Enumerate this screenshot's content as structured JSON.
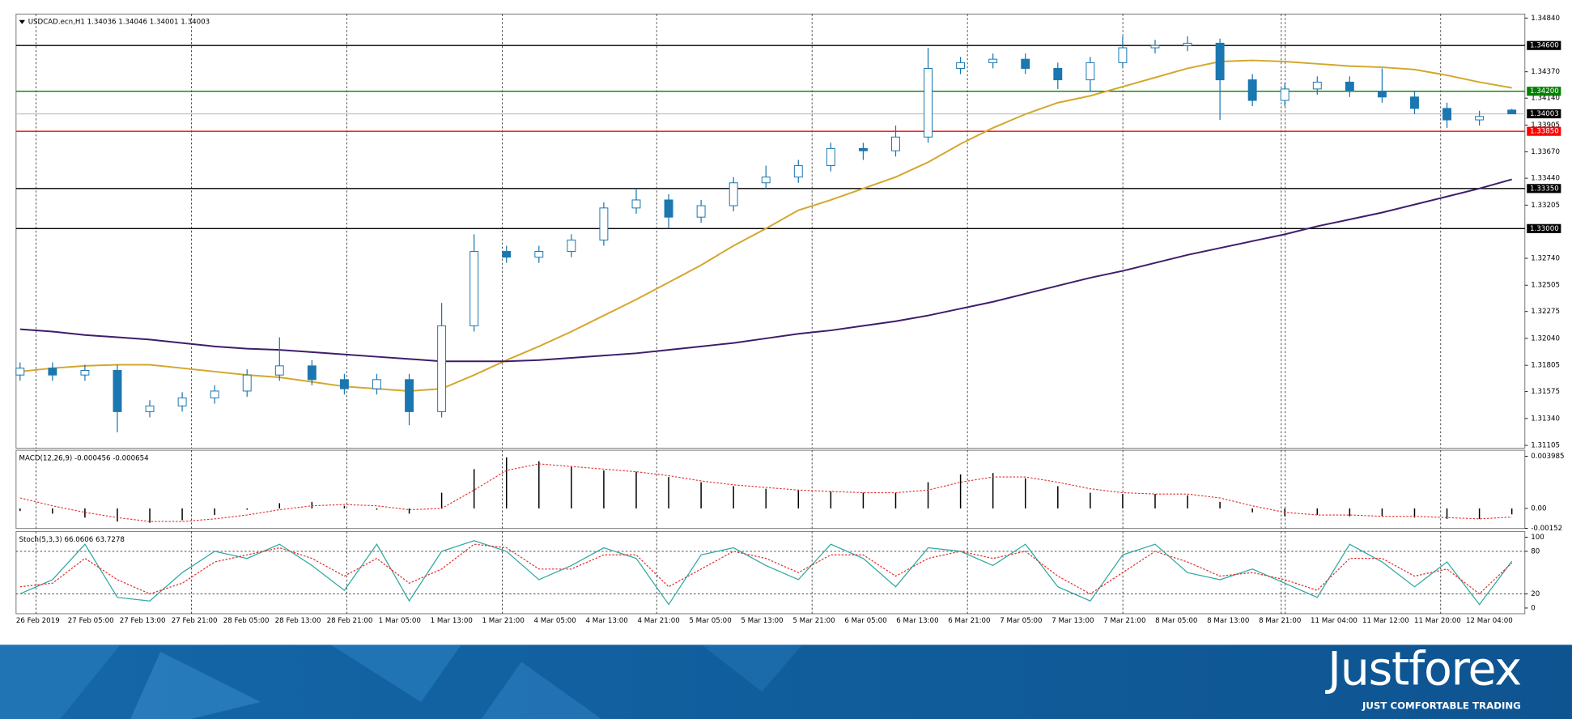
{
  "chart_data": [
    {
      "type": "candlestick",
      "title": "USDCAD.ecn,H1  1.34036 1.34046 1.34001 1.34003",
      "ylim": [
        1.3108,
        1.34875
      ],
      "yticks": [
        {
          "value": 1.3484,
          "label": "1.34840"
        },
        {
          "value": 1.3437,
          "label": "1.34370"
        },
        {
          "value": 1.3414,
          "label": "1.34140"
        },
        {
          "value": 1.33905,
          "label": "1.33905"
        },
        {
          "value": 1.3367,
          "label": "1.33670"
        },
        {
          "value": 1.3344,
          "label": "1.33440"
        },
        {
          "value": 1.33205,
          "label": "1.33205"
        },
        {
          "value": 1.3274,
          "label": "1.32740"
        },
        {
          "value": 1.32505,
          "label": "1.32505"
        },
        {
          "value": 1.32275,
          "label": "1.32275"
        },
        {
          "value": 1.3204,
          "label": "1.32040"
        },
        {
          "value": 1.31805,
          "label": "1.31805"
        },
        {
          "value": 1.31575,
          "label": "1.31575"
        },
        {
          "value": 1.3134,
          "label": "1.31340"
        },
        {
          "value": 1.31105,
          "label": "1.31105"
        }
      ],
      "levels": [
        {
          "value": 1.346,
          "label": "1.34600",
          "color": "#000000",
          "tag": "#000000"
        },
        {
          "value": 1.342,
          "label": "1.34200",
          "color": "#008000",
          "tag": "#008000"
        },
        {
          "value": 1.34003,
          "label": "1.34003",
          "color": "#c8c8c8",
          "tag": "#000000"
        },
        {
          "value": 1.3385,
          "label": "1.33850",
          "color": "#ff0000",
          "tag": "#ff0000"
        },
        {
          "value": 1.3335,
          "label": "1.33350",
          "color": "#000000",
          "tag": "#000000"
        },
        {
          "value": 1.33,
          "label": "1.33000",
          "color": "#000000",
          "tag": "#000000"
        }
      ],
      "up_color": "#ffffff",
      "down_color": "#1a77b0",
      "wick_color": "#1a77b0",
      "open": [
        1.3172,
        1.3178,
        1.3172,
        1.3176,
        1.314,
        1.3145,
        1.3152,
        1.3158,
        1.3172,
        1.318,
        1.3168,
        1.316,
        1.3168,
        1.314,
        1.3215,
        1.328,
        1.3275,
        1.328,
        1.329,
        1.3318,
        1.3325,
        1.331,
        1.332,
        1.334,
        1.3345,
        1.3355,
        1.337,
        1.3368,
        1.338,
        1.344,
        1.3445,
        1.3448,
        1.344,
        1.343,
        1.3445,
        1.3458,
        1.346,
        1.3462,
        1.343,
        1.3412,
        1.3422,
        1.3428,
        1.342,
        1.3415,
        1.3405,
        1.3395,
        1.34036
      ],
      "high": [
        1.3183,
        1.3183,
        1.3181,
        1.3181,
        1.315,
        1.3157,
        1.3163,
        1.3177,
        1.3205,
        1.3185,
        1.3173,
        1.3173,
        1.3173,
        1.3235,
        1.3295,
        1.3285,
        1.3285,
        1.3295,
        1.3323,
        1.3335,
        1.333,
        1.3325,
        1.3345,
        1.3355,
        1.336,
        1.3375,
        1.3375,
        1.339,
        1.3458,
        1.345,
        1.3453,
        1.3453,
        1.3445,
        1.345,
        1.3468,
        1.3465,
        1.3468,
        1.3466,
        1.3435,
        1.3427,
        1.3433,
        1.3433,
        1.344,
        1.342,
        1.341,
        1.3403,
        1.34046
      ],
      "low": [
        1.3167,
        1.3167,
        1.3167,
        1.3122,
        1.3135,
        1.314,
        1.3147,
        1.3153,
        1.3167,
        1.3163,
        1.3155,
        1.3155,
        1.3128,
        1.3135,
        1.321,
        1.327,
        1.327,
        1.3275,
        1.3285,
        1.3313,
        1.33,
        1.3305,
        1.3315,
        1.3335,
        1.334,
        1.335,
        1.336,
        1.3363,
        1.3375,
        1.3435,
        1.344,
        1.3435,
        1.3422,
        1.342,
        1.344,
        1.3453,
        1.3455,
        1.3395,
        1.3407,
        1.3407,
        1.3417,
        1.3415,
        1.341,
        1.34,
        1.3388,
        1.339,
        1.34001
      ],
      "close": [
        1.3178,
        1.3172,
        1.3176,
        1.314,
        1.3145,
        1.3152,
        1.3158,
        1.3172,
        1.318,
        1.3168,
        1.316,
        1.3168,
        1.314,
        1.3215,
        1.328,
        1.3275,
        1.328,
        1.329,
        1.3318,
        1.3325,
        1.331,
        1.332,
        1.334,
        1.3345,
        1.3355,
        1.337,
        1.3368,
        1.338,
        1.344,
        1.3445,
        1.3448,
        1.344,
        1.343,
        1.3445,
        1.3458,
        1.346,
        1.3462,
        1.343,
        1.3412,
        1.3422,
        1.3428,
        1.342,
        1.3415,
        1.3405,
        1.3395,
        1.3398,
        1.34003
      ],
      "lines": [
        {
          "color": "#d4a72c",
          "values": [
            1.3175,
            1.3178,
            1.318,
            1.3181,
            1.3181,
            1.3178,
            1.3175,
            1.3172,
            1.317,
            1.3166,
            1.3162,
            1.316,
            1.3158,
            1.316,
            1.3172,
            1.3185,
            1.3197,
            1.321,
            1.3224,
            1.3238,
            1.3253,
            1.3268,
            1.3285,
            1.33,
            1.3316,
            1.3325,
            1.3335,
            1.3345,
            1.3358,
            1.3374,
            1.3388,
            1.34,
            1.341,
            1.3416,
            1.3424,
            1.3432,
            1.344,
            1.3446,
            1.3447,
            1.3446,
            1.3444,
            1.3442,
            1.3441,
            1.3439,
            1.3434,
            1.3428,
            1.3423
          ]
        },
        {
          "color": "#3d1d6b",
          "values": [
            1.3212,
            1.321,
            1.3207,
            1.3205,
            1.3203,
            1.32,
            1.3197,
            1.3195,
            1.3194,
            1.3192,
            1.319,
            1.3188,
            1.3186,
            1.3184,
            1.3184,
            1.3184,
            1.3185,
            1.3187,
            1.3189,
            1.3191,
            1.3194,
            1.3197,
            1.32,
            1.3204,
            1.3208,
            1.3211,
            1.3215,
            1.3219,
            1.3224,
            1.323,
            1.3236,
            1.3243,
            1.325,
            1.3257,
            1.3263,
            1.327,
            1.3277,
            1.3283,
            1.3289,
            1.3295,
            1.3302,
            1.3308,
            1.3314,
            1.3321,
            1.3328,
            1.3335,
            1.3343
          ]
        }
      ],
      "time_labels": [
        "26 Feb 2019",
        "27 Feb 05:00",
        "27 Feb 13:00",
        "27 Feb 21:00",
        "28 Feb 05:00",
        "28 Feb 13:00",
        "28 Feb 21:00",
        "1 Mar 05:00",
        "1 Mar 13:00",
        "1 Mar 21:00",
        "4 Mar 05:00",
        "4 Mar 13:00",
        "4 Mar 21:00",
        "5 Mar 05:00",
        "5 Mar 13:00",
        "5 Mar 21:00",
        "6 Mar 05:00",
        "6 Mar 13:00",
        "6 Mar 21:00",
        "7 Mar 05:00",
        "7 Mar 13:00",
        "7 Mar 21:00",
        "8 Mar 05:00",
        "8 Mar 13:00",
        "8 Mar 21:00",
        "11 Mar 04:00",
        "11 Mar 12:00",
        "11 Mar 20:00",
        "12 Mar 04:00"
      ]
    },
    {
      "type": "macd",
      "title": "MACD(12,26,9) -0.000456 -0.000654",
      "ylim": [
        -0.00153,
        0.00444
      ],
      "yticks": [
        0.003985,
        {
          "value": 0,
          "label": "0.00"
        },
        -0.00152
      ],
      "color": "#000000",
      "values": [
        -0.0002,
        -0.0004,
        -0.0007,
        -0.001,
        -0.0011,
        -0.0009,
        -0.0005,
        -0.0001,
        0.0004,
        0.0005,
        0.0002,
        -0.0001,
        -0.0004,
        0.0012,
        0.003,
        0.0039,
        0.0036,
        0.0032,
        0.0029,
        0.0028,
        0.0024,
        0.002,
        0.0017,
        0.0015,
        0.0014,
        0.0013,
        0.0012,
        0.0012,
        0.002,
        0.0026,
        0.0027,
        0.0023,
        0.0017,
        0.0012,
        0.0011,
        0.0011,
        0.001,
        0.0005,
        -0.0003,
        -0.0006,
        -0.0005,
        -0.0006,
        -0.0006,
        -0.0007,
        -0.0008,
        -0.0008,
        -0.000456
      ],
      "signal": {
        "color": "#e03030",
        "values": [
          0.0008,
          0.0002,
          -0.0003,
          -0.0007,
          -0.001,
          -0.001,
          -0.0008,
          -0.0005,
          -0.0001,
          0.0002,
          0.0003,
          0.0002,
          -0.0001,
          0.0,
          0.0014,
          0.0029,
          0.0034,
          0.0032,
          0.003,
          0.0028,
          0.0025,
          0.0021,
          0.0018,
          0.0016,
          0.0014,
          0.0013,
          0.0012,
          0.0012,
          0.0014,
          0.002,
          0.0024,
          0.0024,
          0.002,
          0.0015,
          0.0012,
          0.0011,
          0.0011,
          0.0008,
          0.0002,
          -0.0003,
          -0.0005,
          -0.0005,
          -0.0006,
          -0.0006,
          -0.0007,
          -0.0008,
          -0.000654
        ]
      }
    },
    {
      "type": "stochastic",
      "title": "Stoch(5,3,3) 66.0606 63.7278",
      "ylim": [
        -8,
        108
      ],
      "yticks": [
        100,
        80,
        20,
        0
      ],
      "levels": [
        80,
        20
      ],
      "series": [
        {
          "color": "#2ea8a0",
          "values": [
            20,
            40,
            90,
            15,
            10,
            50,
            80,
            70,
            90,
            60,
            25,
            90,
            10,
            80,
            95,
            80,
            40,
            60,
            85,
            70,
            5,
            75,
            85,
            60,
            40,
            90,
            70,
            30,
            85,
            80,
            60,
            90,
            30,
            10,
            75,
            90,
            50,
            40,
            55,
            35,
            15,
            90,
            65,
            30,
            65,
            5,
            66.0606
          ]
        },
        {
          "color": "#e03030",
          "dashed": true,
          "values": [
            30,
            35,
            70,
            40,
            20,
            35,
            65,
            75,
            85,
            70,
            45,
            70,
            35,
            55,
            90,
            85,
            55,
            55,
            75,
            75,
            30,
            55,
            80,
            70,
            50,
            75,
            75,
            45,
            70,
            80,
            70,
            80,
            45,
            20,
            50,
            80,
            65,
            45,
            50,
            40,
            25,
            70,
            70,
            45,
            55,
            20,
            63.7278
          ]
        }
      ]
    }
  ],
  "footer": {
    "brand": "Justforex",
    "tagline": "JUST COMFORTABLE TRADING"
  }
}
